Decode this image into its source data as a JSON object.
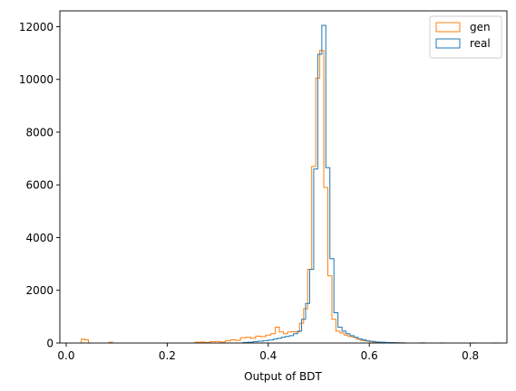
{
  "chart_data": {
    "type": "histogram-step",
    "xlabel": "Output of BDT",
    "ylabel": "",
    "xlim": [
      -0.0125,
      0.8725
    ],
    "ylim": [
      0,
      12600
    ],
    "xticks": [
      0.0,
      0.2,
      0.4,
      0.6,
      0.8
    ],
    "xtick_labels": [
      "0.0",
      "0.2",
      "0.4",
      "0.6",
      "0.8"
    ],
    "yticks": [
      0,
      2000,
      4000,
      6000,
      8000,
      10000,
      12000
    ],
    "ytick_labels": [
      "0",
      "2000",
      "4000",
      "6000",
      "8000",
      "10000",
      "12000"
    ],
    "grid": false,
    "legend_position": "top-right",
    "series": [
      {
        "name": "gen",
        "color": "#ff7f0e",
        "points": [
          [
            0.03,
            0.037,
            150
          ],
          [
            0.037,
            0.044,
            120
          ],
          [
            0.044,
            0.052,
            0
          ],
          [
            0.085,
            0.092,
            30
          ],
          [
            0.255,
            0.265,
            30
          ],
          [
            0.265,
            0.275,
            40
          ],
          [
            0.275,
            0.285,
            20
          ],
          [
            0.285,
            0.295,
            50
          ],
          [
            0.295,
            0.305,
            60
          ],
          [
            0.305,
            0.315,
            40
          ],
          [
            0.315,
            0.325,
            80
          ],
          [
            0.325,
            0.335,
            120
          ],
          [
            0.335,
            0.345,
            100
          ],
          [
            0.345,
            0.355,
            200
          ],
          [
            0.355,
            0.365,
            220
          ],
          [
            0.365,
            0.375,
            180
          ],
          [
            0.375,
            0.385,
            260
          ],
          [
            0.385,
            0.395,
            240
          ],
          [
            0.395,
            0.405,
            300
          ],
          [
            0.405,
            0.414,
            350
          ],
          [
            0.414,
            0.422,
            600
          ],
          [
            0.422,
            0.43,
            420
          ],
          [
            0.43,
            0.438,
            350
          ],
          [
            0.438,
            0.446,
            420
          ],
          [
            0.446,
            0.454,
            430
          ],
          [
            0.454,
            0.462,
            420
          ],
          [
            0.462,
            0.47,
            750
          ],
          [
            0.47,
            0.478,
            1300
          ],
          [
            0.478,
            0.486,
            2800
          ],
          [
            0.486,
            0.494,
            6700
          ],
          [
            0.494,
            0.502,
            10050
          ],
          [
            0.502,
            0.51,
            11100
          ],
          [
            0.51,
            0.518,
            5900
          ],
          [
            0.518,
            0.526,
            2550
          ],
          [
            0.526,
            0.534,
            900
          ],
          [
            0.534,
            0.542,
            450
          ],
          [
            0.542,
            0.55,
            380
          ],
          [
            0.55,
            0.558,
            300
          ],
          [
            0.558,
            0.566,
            250
          ],
          [
            0.566,
            0.574,
            220
          ],
          [
            0.574,
            0.582,
            150
          ],
          [
            0.582,
            0.59,
            100
          ],
          [
            0.59,
            0.598,
            80
          ],
          [
            0.598,
            0.606,
            60
          ],
          [
            0.606,
            0.614,
            40
          ],
          [
            0.614,
            0.622,
            30
          ],
          [
            0.622,
            0.63,
            20
          ],
          [
            0.63,
            0.64,
            15
          ],
          [
            0.64,
            0.65,
            10
          ],
          [
            0.65,
            0.66,
            8
          ],
          [
            0.66,
            0.67,
            5
          ]
        ]
      },
      {
        "name": "real",
        "color": "#1f77b4",
        "points": [
          [
            0.35,
            0.36,
            20
          ],
          [
            0.36,
            0.37,
            30
          ],
          [
            0.37,
            0.38,
            50
          ],
          [
            0.38,
            0.39,
            70
          ],
          [
            0.39,
            0.4,
            90
          ],
          [
            0.4,
            0.41,
            110
          ],
          [
            0.41,
            0.418,
            150
          ],
          [
            0.418,
            0.426,
            180
          ],
          [
            0.426,
            0.434,
            220
          ],
          [
            0.434,
            0.442,
            250
          ],
          [
            0.442,
            0.45,
            280
          ],
          [
            0.45,
            0.458,
            350
          ],
          [
            0.458,
            0.466,
            450
          ],
          [
            0.466,
            0.474,
            900
          ],
          [
            0.474,
            0.482,
            1500
          ],
          [
            0.482,
            0.49,
            2800
          ],
          [
            0.49,
            0.498,
            6600
          ],
          [
            0.498,
            0.506,
            10950
          ],
          [
            0.506,
            0.514,
            12050
          ],
          [
            0.514,
            0.522,
            6650
          ],
          [
            0.522,
            0.53,
            3200
          ],
          [
            0.53,
            0.538,
            1150
          ],
          [
            0.538,
            0.546,
            600
          ],
          [
            0.546,
            0.554,
            450
          ],
          [
            0.554,
            0.562,
            350
          ],
          [
            0.562,
            0.57,
            280
          ],
          [
            0.57,
            0.578,
            220
          ],
          [
            0.578,
            0.586,
            160
          ],
          [
            0.586,
            0.594,
            120
          ],
          [
            0.594,
            0.602,
            80
          ],
          [
            0.602,
            0.612,
            60
          ],
          [
            0.612,
            0.622,
            40
          ],
          [
            0.622,
            0.632,
            30
          ],
          [
            0.632,
            0.642,
            20
          ],
          [
            0.642,
            0.652,
            15
          ],
          [
            0.652,
            0.662,
            10
          ],
          [
            0.662,
            0.672,
            5
          ],
          [
            0.7,
            0.71,
            3
          ],
          [
            0.74,
            0.75,
            2
          ],
          [
            0.8,
            0.81,
            2
          ],
          [
            0.845,
            0.855,
            1
          ]
        ]
      }
    ]
  }
}
